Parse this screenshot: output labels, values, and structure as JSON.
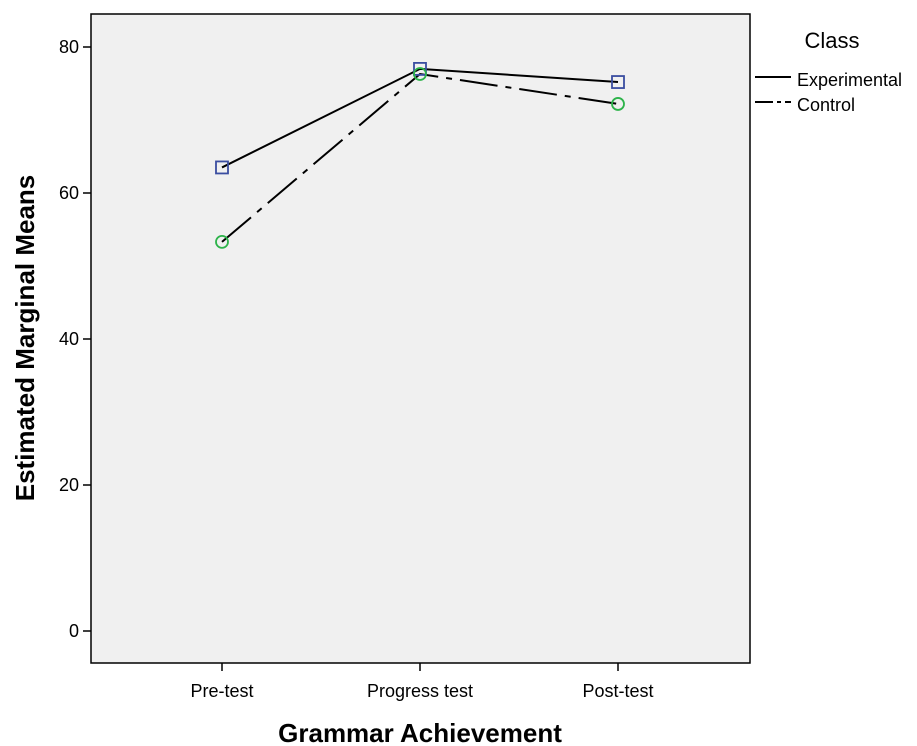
{
  "chart_data": {
    "type": "line",
    "xlabel": "Grammar Achievement",
    "ylabel": "Estimated Marginal Means",
    "categories": [
      "Pre-test",
      "Progress test",
      "Post-test"
    ],
    "ylim": [
      -4.5,
      80
    ],
    "yticks": [
      0,
      20,
      40,
      60,
      80
    ],
    "grid": false,
    "legend": {
      "title": "Class",
      "placement": "right"
    },
    "series": [
      {
        "name": "Experimental",
        "values": [
          63.5,
          77.0,
          75.2
        ],
        "line_style": "solid",
        "marker": "square",
        "marker_color": "#3a4da0"
      },
      {
        "name": "Control",
        "values": [
          53.3,
          76.3,
          72.2
        ],
        "line_style": "dash-dot",
        "marker": "circle",
        "marker_color": "#2db34a"
      }
    ],
    "colors": {
      "plot_background": "#f0f0f0",
      "line": "#000000"
    }
  }
}
